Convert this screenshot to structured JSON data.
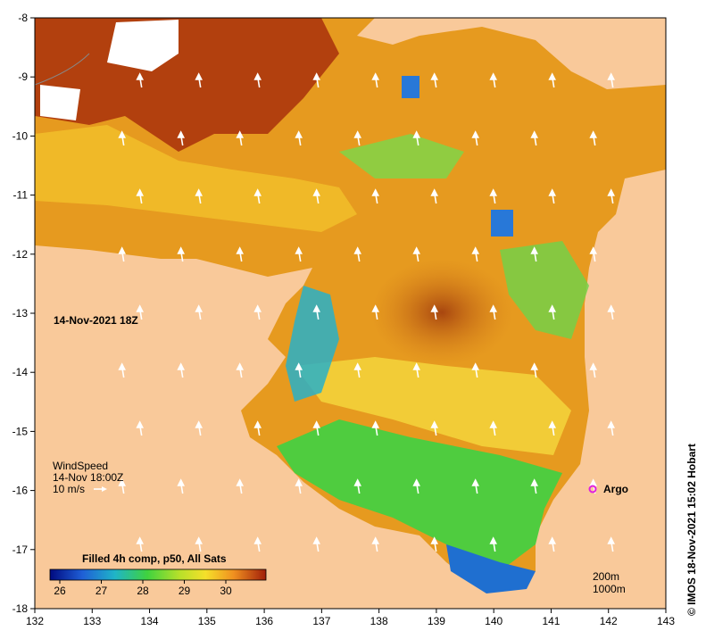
{
  "map": {
    "date_label": "14-Nov-2021 18Z",
    "credit": "© IMOS 18-Nov-2021 15:02 Hobart",
    "x_ticks": [
      "132",
      "133",
      "134",
      "135",
      "136",
      "137",
      "138",
      "139",
      "140",
      "141",
      "142",
      "143"
    ],
    "y_ticks": [
      "-8",
      "-9",
      "-10",
      "-11",
      "-12",
      "-13",
      "-14",
      "-15",
      "-16",
      "-17",
      "-18"
    ],
    "wind": {
      "title": "WindSpeed",
      "time": "14-Nov 18:00Z",
      "scale": "10 m/s"
    },
    "argo_label": "Argo",
    "colorbar": {
      "title": "Filled 4h comp, p50, All Sats",
      "ticks": [
        "26",
        "27",
        "28",
        "29",
        "30"
      ]
    },
    "contours": {
      "c200": "200m",
      "c1000": "1000m"
    },
    "colors": {
      "land": "#f9c99a",
      "argo": "#e020e0",
      "sst_warm": "#e69a1f",
      "sst_hot": "#a0300a",
      "sst_mid": "#f2d23a",
      "sst_cool": "#5ed14b",
      "sst_cold": "#1f7fd6"
    }
  }
}
